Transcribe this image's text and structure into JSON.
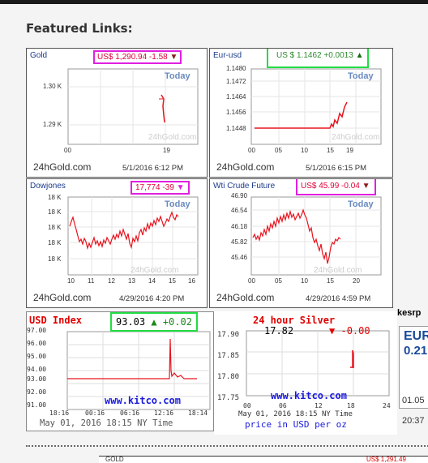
{
  "heading": "Featured Links:",
  "source_label": "24hGold.com",
  "watermark": "24hGold.com",
  "today_label": "Today",
  "gold": {
    "title": "Gold",
    "price": "US$ 1,290.94 -1.58",
    "y_ticks": [
      "1.30 K",
      "1.29 K"
    ],
    "x_ticks": [
      "00",
      "19"
    ],
    "datetime": "5/1/2016 6:12 PM",
    "colors": {
      "price_text": "#e0003a",
      "box": "#e020e0"
    }
  },
  "eurusd": {
    "title": "Eur-usd",
    "price": "US $ 1.1462 +0.0013",
    "y_ticks": [
      "1.1480",
      "1.1472",
      "1.1464",
      "1.1456",
      "1.1448"
    ],
    "x_ticks": [
      "00",
      "05",
      "10",
      "15",
      "19"
    ],
    "datetime": "5/1/2016 6:15 PM",
    "colors": {
      "price_text": "#2e8b2e",
      "box": "#22dd44"
    }
  },
  "dowjones": {
    "title": "Dowjones",
    "price": "17,774 -39",
    "y_ticks": [
      "18 K",
      "18 K",
      "18 K",
      "18 K",
      "18 K"
    ],
    "x_ticks": [
      "10",
      "11",
      "12",
      "13",
      "14",
      "15",
      "16"
    ],
    "datetime": "4/29/2016 4:20 PM"
  },
  "wti": {
    "title": "Wti Crude Future",
    "price": "US$ 45.99 -0.04",
    "y_ticks": [
      "46.90",
      "46.54",
      "46.18",
      "45.82",
      "45.46"
    ],
    "x_ticks": [
      "00",
      "05",
      "10",
      "15",
      "20"
    ],
    "datetime": "4/29/2016 4:59 PM"
  },
  "usd_index": {
    "title": "USD Index",
    "value": "93.03",
    "change": "+0.02",
    "y_ticks": [
      "97.00",
      "96.00",
      "95.00",
      "94.00",
      "93.00",
      "92.00",
      "91.00"
    ],
    "x_ticks": [
      "18:16",
      "00:16",
      "06:16",
      "12:16",
      "18:14"
    ],
    "watermark": "www.kitco.com",
    "datetime": "May 01, 2016 18:15 NY Time"
  },
  "silver": {
    "title": "24 hour Silver",
    "value": "17.82",
    "change": "-0.00",
    "y_ticks": [
      "17.90",
      "17.85",
      "17.80",
      "17.75"
    ],
    "x_ticks": [
      "00",
      "06",
      "12",
      "18",
      "24"
    ],
    "watermark": "www.kitco.com",
    "datetime": "May 01, 2016 18:15 NY Time",
    "unit_note": "price in USD per oz"
  },
  "eur_partial": {
    "top": "kesrp",
    "title": "EUR",
    "value": "0.21",
    "low": "01.05",
    "time": "20:37"
  },
  "bottom_row": {
    "left": "GOLD",
    "right": "US$ 1,291.49"
  },
  "colors": {
    "chart_line": "#e8141e",
    "ring_magenta": "#e020e0",
    "ring_green": "#22dd44",
    "kitco_blue": "#1a1ae0",
    "kitco_red": "#e00000"
  }
}
